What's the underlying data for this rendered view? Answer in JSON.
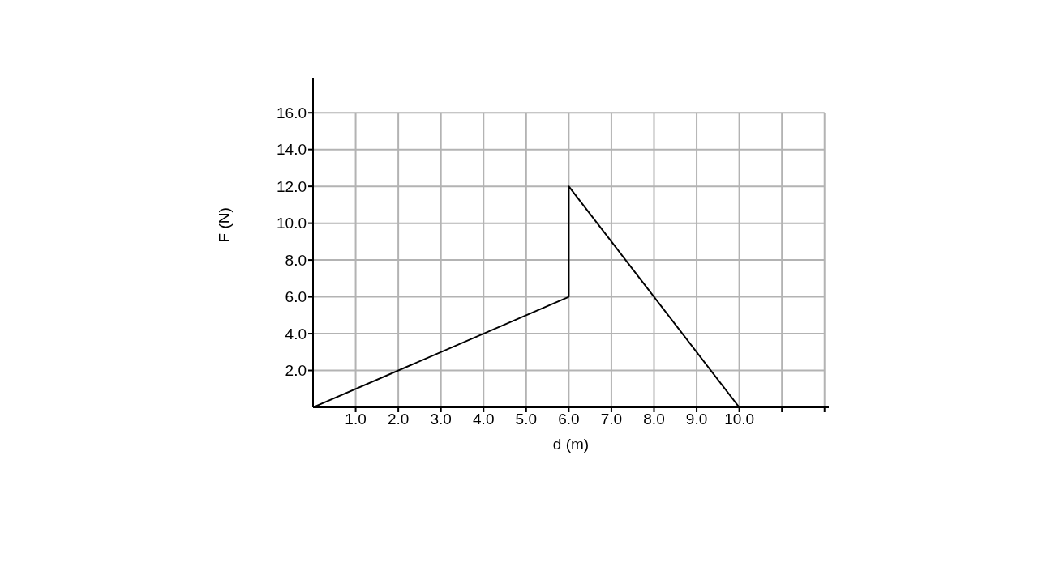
{
  "chart_data": {
    "type": "line",
    "xlabel": "d (m)",
    "ylabel": "F (N)",
    "x": [
      0,
      6,
      6,
      10
    ],
    "series": [
      {
        "color": "#000000",
        "values": [
          0,
          6,
          12,
          0
        ]
      }
    ],
    "xlim": [
      0,
      12.1
    ],
    "ylim": [
      0,
      17.9
    ],
    "xticks": [
      {
        "value": 1,
        "label": "1.0"
      },
      {
        "value": 2,
        "label": "2.0"
      },
      {
        "value": 3,
        "label": "3.0"
      },
      {
        "value": 4,
        "label": "4.0"
      },
      {
        "value": 5,
        "label": "5.0"
      },
      {
        "value": 6,
        "label": "6.0"
      },
      {
        "value": 7,
        "label": "7.0"
      },
      {
        "value": 8,
        "label": "8.0"
      },
      {
        "value": 9,
        "label": "9.0"
      },
      {
        "value": 10,
        "label": "10.0"
      },
      {
        "value": 11,
        "label": null
      },
      {
        "value": 12,
        "label": null
      }
    ],
    "yticks": [
      {
        "value": 2,
        "label": "2.0"
      },
      {
        "value": 4,
        "label": "4.0"
      },
      {
        "value": 6,
        "label": "6.0"
      },
      {
        "value": 8,
        "label": "8.0"
      },
      {
        "value": 10,
        "label": "10.0"
      },
      {
        "value": 12,
        "label": "12.0"
      },
      {
        "value": 14,
        "label": "14.0"
      },
      {
        "value": 16,
        "label": "16.0"
      }
    ],
    "grid": true,
    "marker": "none",
    "line_style": "solid"
  }
}
